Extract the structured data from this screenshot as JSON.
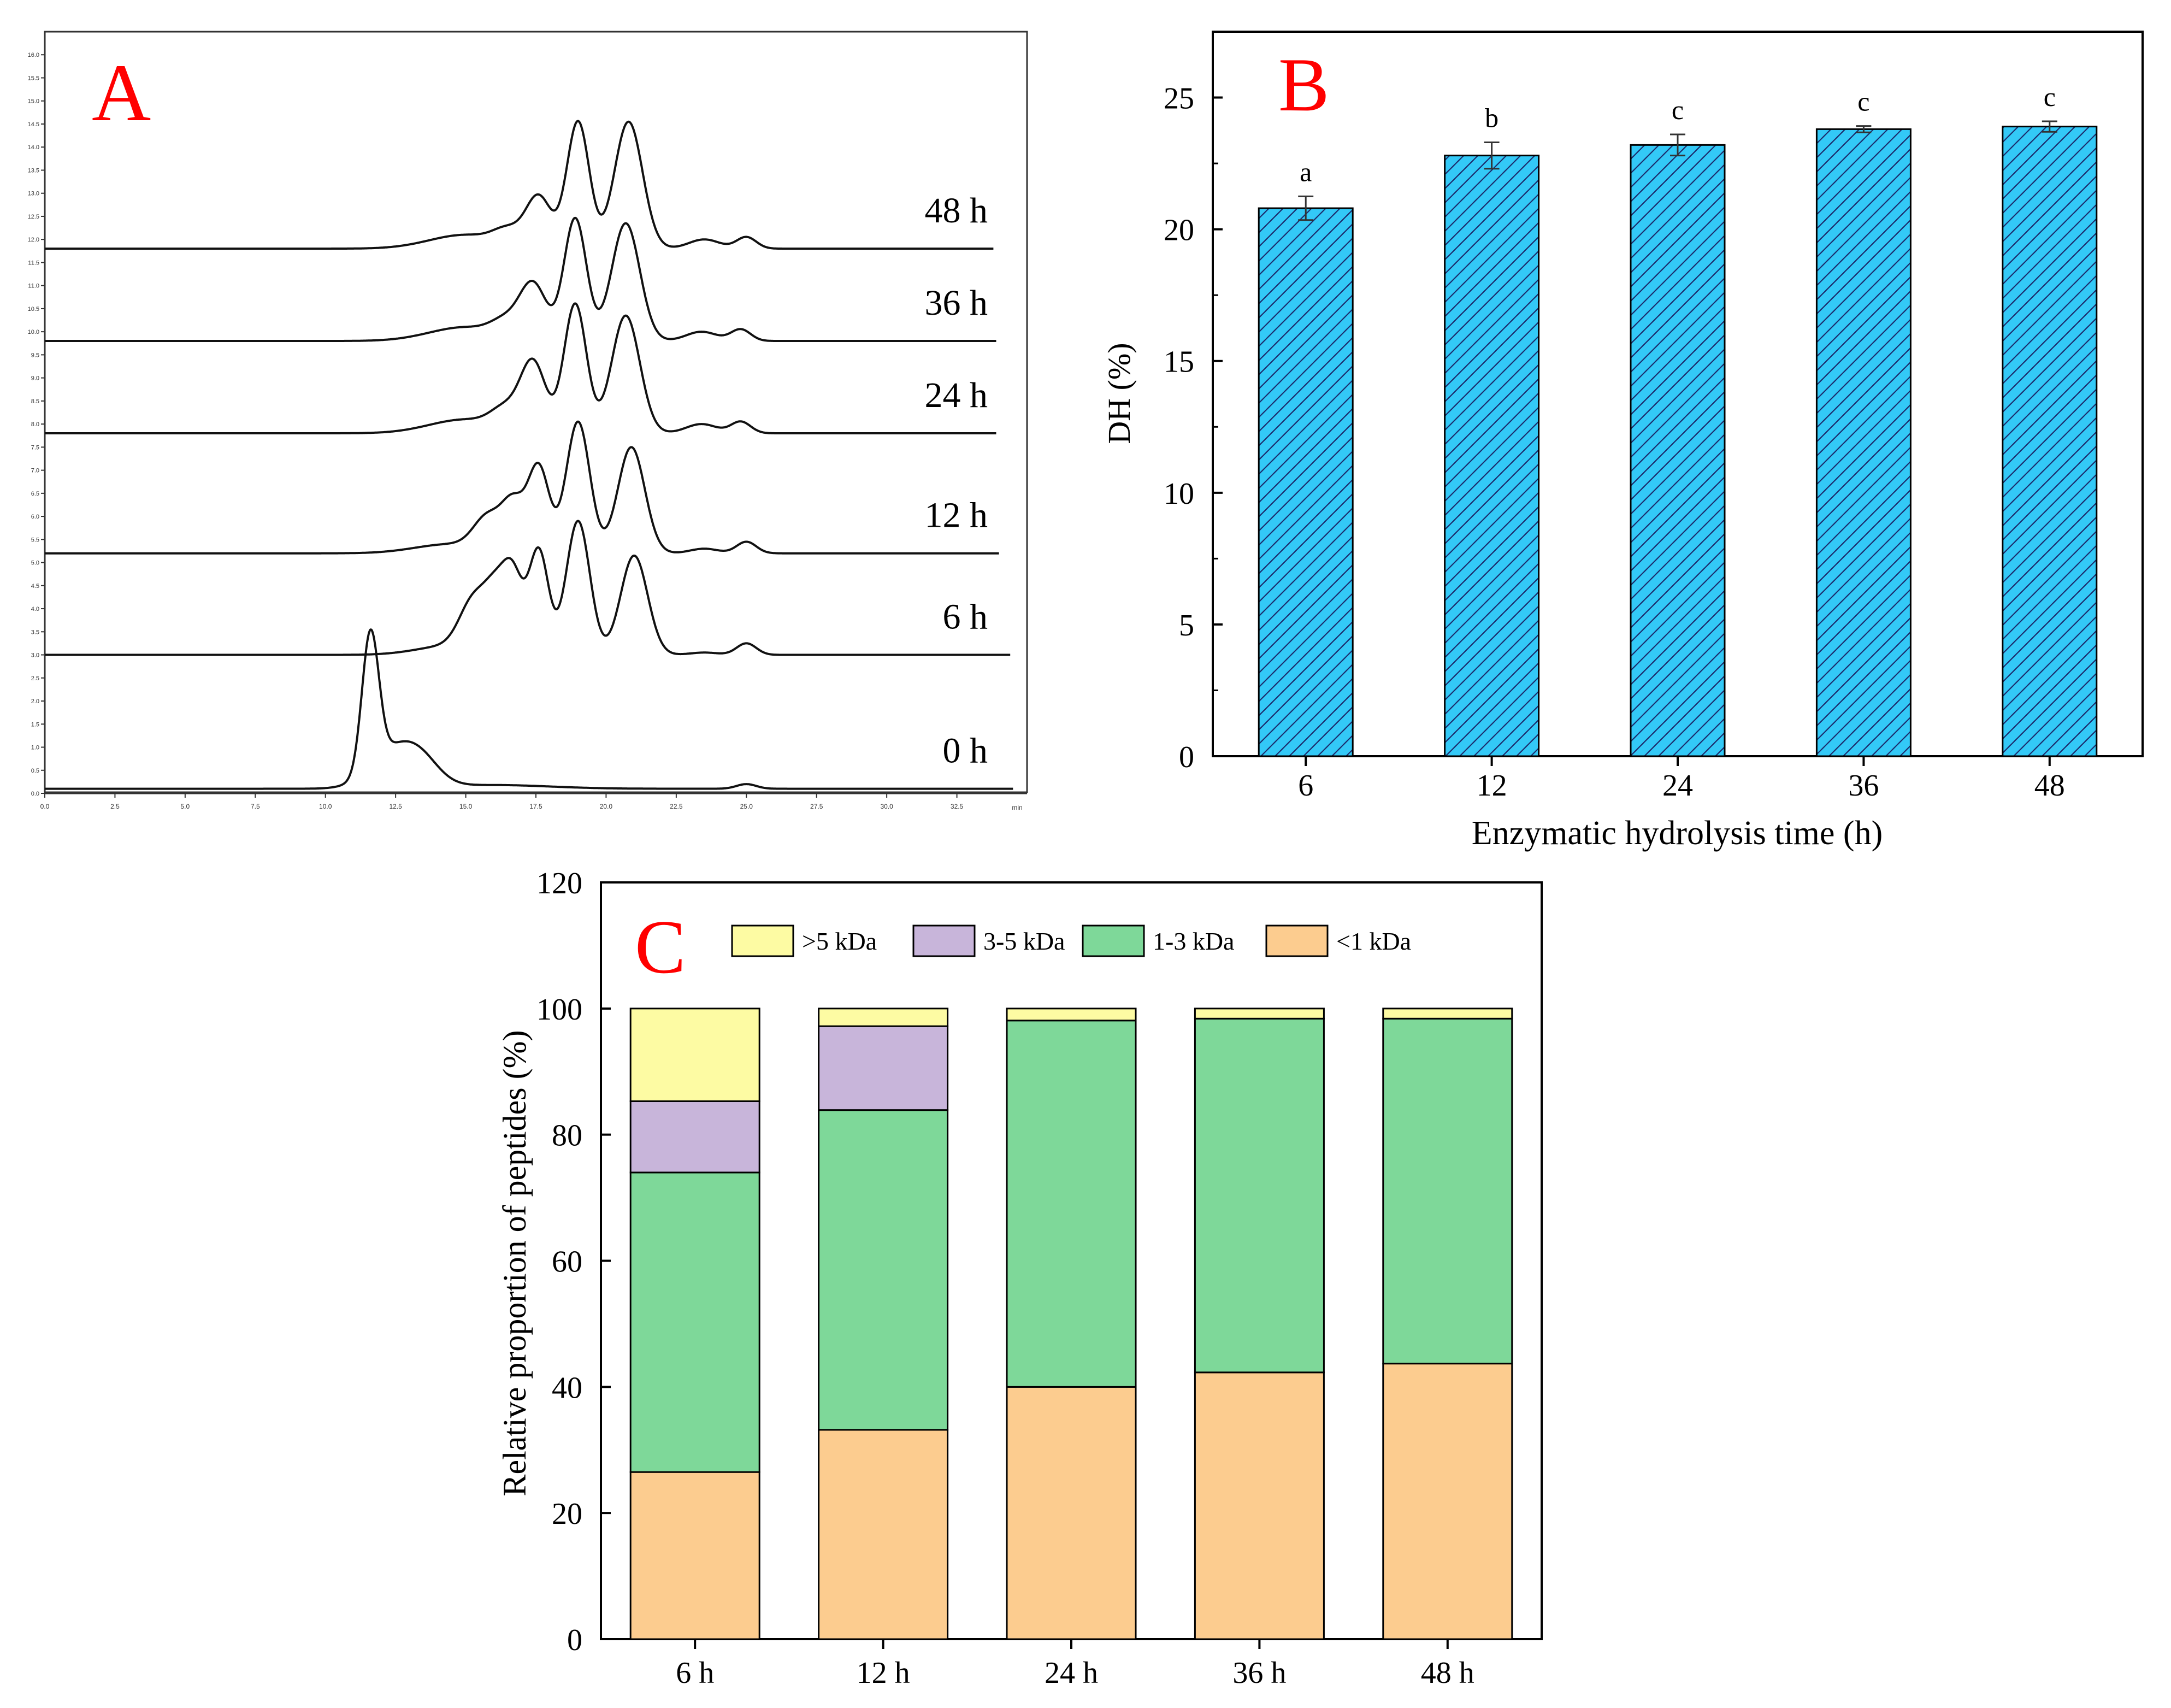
{
  "chart_data": [
    {
      "panel": "A",
      "type": "line",
      "panel_label": "A",
      "x_unit_label": "min",
      "x_ticks": [
        "0.0",
        "2.5",
        "5.0",
        "7.5",
        "10.0",
        "12.5",
        "15.0",
        "17.5",
        "20.0",
        "22.5",
        "25.0",
        "27.5",
        "30.0",
        "32.5"
      ],
      "y_ticks": [
        "0.0",
        "0.5",
        "1.0",
        "1.5",
        "2.0",
        "2.5",
        "3.0",
        "3.5",
        "4.0",
        "4.5",
        "5.0",
        "5.5",
        "6.0",
        "6.5",
        "7.0",
        "7.5",
        "8.0",
        "8.5",
        "9.0",
        "9.5",
        "10.0",
        "10.5",
        "11.0",
        "11.5",
        "12.0",
        "12.5",
        "13.0",
        "13.5",
        "14.0",
        "14.5",
        "15.0",
        "15.5",
        "16.0"
      ],
      "xlim": [
        0,
        35
      ],
      "ylim": [
        0,
        16.5
      ],
      "series": [
        {
          "name": "0 h",
          "baseline": 0.1,
          "x_end": 34.5,
          "peaks": [
            [
              11.6,
              2.95,
              0.3
            ],
            [
              12.6,
              0.9,
              0.9
            ],
            [
              13.5,
              0.25,
              0.6
            ],
            [
              16.0,
              0.08,
              2.0
            ],
            [
              25.0,
              0.1,
              0.35
            ]
          ]
        },
        {
          "name": "6 h",
          "baseline": 3.0,
          "x_end": 34.4,
          "peaks": [
            [
              14.5,
              0.2,
              1.2
            ],
            [
              15.3,
              1.05,
              0.5
            ],
            [
              16.1,
              1.15,
              0.4
            ],
            [
              16.7,
              1.5,
              0.35
            ],
            [
              17.6,
              2.25,
              0.35
            ],
            [
              19.0,
              2.9,
              0.42
            ],
            [
              21.0,
              2.15,
              0.48
            ],
            [
              23.5,
              0.05,
              0.5
            ],
            [
              25.0,
              0.25,
              0.35
            ]
          ]
        },
        {
          "name": "12 h",
          "baseline": 5.2,
          "x_end": 34.0,
          "peaks": [
            [
              14.5,
              0.2,
              1.3
            ],
            [
              15.8,
              0.7,
              0.5
            ],
            [
              16.7,
              1.0,
              0.4
            ],
            [
              17.6,
              1.85,
              0.38
            ],
            [
              19.0,
              2.85,
              0.42
            ],
            [
              20.9,
              2.3,
              0.48
            ],
            [
              23.5,
              0.1,
              0.5
            ],
            [
              25.0,
              0.25,
              0.35
            ]
          ]
        },
        {
          "name": "24 h",
          "baseline": 7.8,
          "x_end": 33.9,
          "peaks": [
            [
              15.0,
              0.3,
              1.3
            ],
            [
              16.4,
              0.4,
              0.5
            ],
            [
              17.4,
              1.5,
              0.45
            ],
            [
              18.9,
              2.8,
              0.4
            ],
            [
              20.7,
              2.55,
              0.5
            ],
            [
              23.4,
              0.2,
              0.55
            ],
            [
              24.8,
              0.25,
              0.35
            ]
          ]
        },
        {
          "name": "36 h",
          "baseline": 9.8,
          "x_end": 33.9,
          "peaks": [
            [
              15.0,
              0.3,
              1.3
            ],
            [
              16.4,
              0.3,
              0.5
            ],
            [
              17.4,
              1.2,
              0.48
            ],
            [
              18.9,
              2.65,
              0.4
            ],
            [
              20.7,
              2.55,
              0.5
            ],
            [
              23.4,
              0.2,
              0.55
            ],
            [
              24.8,
              0.25,
              0.35
            ]
          ]
        },
        {
          "name": "48 h",
          "baseline": 11.8,
          "x_end": 33.8,
          "peaks": [
            [
              15.0,
              0.3,
              1.3
            ],
            [
              16.5,
              0.3,
              0.5
            ],
            [
              17.6,
              1.1,
              0.45
            ],
            [
              19.0,
              2.75,
              0.4
            ],
            [
              20.8,
              2.75,
              0.5
            ],
            [
              23.5,
              0.2,
              0.55
            ],
            [
              25.0,
              0.25,
              0.35
            ]
          ]
        }
      ]
    },
    {
      "panel": "B",
      "type": "bar",
      "panel_label": "B",
      "categories": [
        "6",
        "12",
        "24",
        "36",
        "48"
      ],
      "values": [
        20.8,
        22.8,
        23.2,
        23.8,
        23.9
      ],
      "errors": [
        0.45,
        0.5,
        0.4,
        0.12,
        0.2
      ],
      "significance": [
        "a",
        "b",
        "c",
        "c",
        "c"
      ],
      "xlabel": "Enzymatic hydrolysis time (h)",
      "ylabel": "DH (%)",
      "ylim": [
        0,
        27.5
      ],
      "yticks": [
        "0",
        "5",
        "10",
        "15",
        "20",
        "25"
      ],
      "bar_color": "#33c9f7",
      "hatch": "diagonal"
    },
    {
      "panel": "C",
      "type": "bar",
      "stacked": true,
      "panel_label": "C",
      "categories": [
        "6 h",
        "12 h",
        "24 h",
        "36 h",
        "48 h"
      ],
      "ylabel": "Relative proportion of peptides (%)",
      "ylim": [
        0,
        120
      ],
      "yticks": [
        "0",
        "20",
        "40",
        "60",
        "80",
        "100",
        "120"
      ],
      "legend_position": "top",
      "series": [
        {
          "name": "<1 kDa",
          "legend_label": "<1 kDa",
          "color": "#fccc8f",
          "values": [
            26.5,
            33.2,
            40.0,
            42.3,
            43.7
          ]
        },
        {
          "name": "1-3 kDa",
          "legend_label": "1-3 kDa",
          "color": "#7ed899",
          "values": [
            47.5,
            50.7,
            58.1,
            56.1,
            54.7
          ]
        },
        {
          "name": "3-5 kDa",
          "legend_label": "3-5 kDa",
          "color": "#c8b5da",
          "values": [
            11.3,
            13.3,
            0.0,
            0.0,
            0.0
          ]
        },
        {
          "name": ">5 kDa",
          "legend_label": ">5 kDa",
          "color": "#fdfba3",
          "values": [
            14.7,
            2.8,
            1.9,
            1.6,
            1.6
          ]
        }
      ]
    }
  ]
}
